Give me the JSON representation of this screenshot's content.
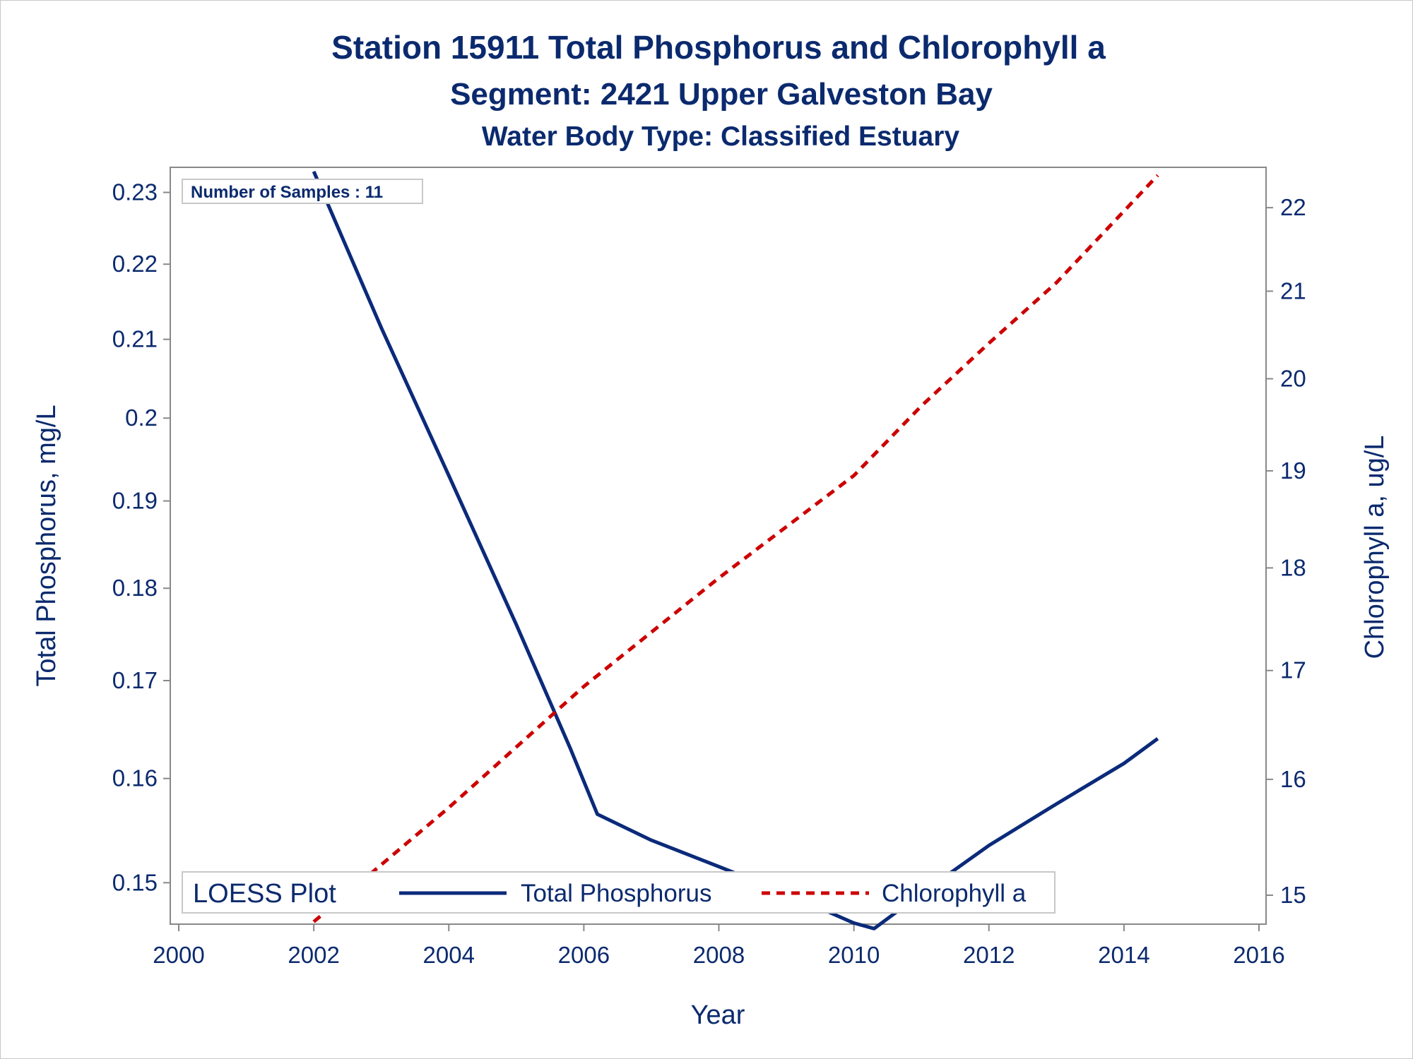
{
  "titles": {
    "line1": "Station 15911   Total Phosphorus and Chlorophyll a",
    "line2": "Segment: 2421  Upper Galveston Bay",
    "line3": "Water Body Type: Classified Estuary"
  },
  "inset": "Number of Samples : 11",
  "legend": {
    "title": "LOESS Plot",
    "tp_label": "Total Phosphorus",
    "chl_label": "Chlorophyll a"
  },
  "colors": {
    "tp": "#0b2a7a",
    "chl": "#cc0000",
    "text": "#0b2a6e",
    "axis": "#888888"
  },
  "chart_data": {
    "type": "line",
    "xlabel": "Year",
    "ylabel_left": "Total Phosphorus, mg/L",
    "ylabel_right": "Chlorophyll a, ug/L",
    "x_ticks": [
      2000,
      2002,
      2004,
      2006,
      2008,
      2010,
      2012,
      2014,
      2016
    ],
    "y_left_ticks": [
      "0.15",
      "0.16",
      "0.17",
      "0.18",
      "0.19",
      "0.2",
      "0.21",
      "0.22",
      "0.23"
    ],
    "y_right_ticks": [
      "15",
      "16",
      "17",
      "18",
      "19",
      "20",
      "21",
      "22"
    ],
    "xlim": [
      2000,
      2016
    ],
    "y_left_scale": "log",
    "y_left_range": [
      0.1462,
      0.2336
    ],
    "y_right_scale": "log",
    "y_right_range": [
      14.76,
      22.5
    ],
    "series": [
      {
        "name": "Total Phosphorus",
        "axis": "left",
        "style": "solid",
        "x": [
          2002.0,
          2003.0,
          2004.0,
          2005.0,
          2005.8,
          2006.2,
          2007.0,
          2008.0,
          2009.0,
          2010.0,
          2010.3,
          2011.0,
          2012.0,
          2013.0,
          2014.0,
          2014.5
        ],
        "y": [
          0.233,
          0.2115,
          0.193,
          0.176,
          0.163,
          0.1565,
          0.154,
          0.1515,
          0.149,
          0.1463,
          0.1458,
          0.149,
          0.1535,
          0.1575,
          0.1615,
          0.164
        ]
      },
      {
        "name": "Chlorophyll a",
        "axis": "right",
        "style": "dashed",
        "x": [
          2002.0,
          2004.0,
          2006.0,
          2008.0,
          2010.0,
          2011.0,
          2012.0,
          2013.0,
          2014.5
        ],
        "y": [
          14.78,
          15.75,
          16.85,
          17.9,
          18.95,
          19.7,
          20.4,
          21.1,
          22.4
        ]
      }
    ]
  }
}
